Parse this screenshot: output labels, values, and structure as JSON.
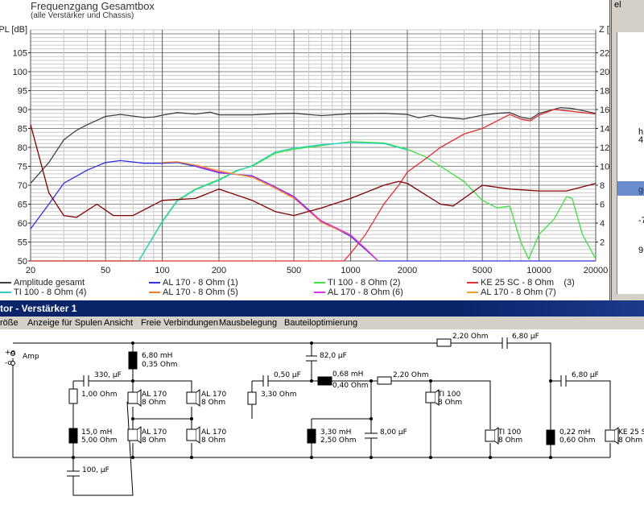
{
  "chart": {
    "title": "Frequenzgang Gesamtbox",
    "subtitle": "(alle Verstärker und Chassis)"
  },
  "chart_data": {
    "type": "line",
    "title": "Frequenzgang Gesamtbox",
    "subtitle": "(alle Verstärker und Chassis)",
    "xscale": "log",
    "xlim": [
      20,
      20000
    ],
    "xticks": [
      "20",
      "50",
      "100",
      "200",
      "500",
      "1000",
      "2000",
      "5000",
      "10000",
      "20000"
    ],
    "ylabel": "PL [dB]",
    "ylim": [
      50,
      110
    ],
    "yticks": [
      "50",
      "55",
      "60",
      "65",
      "70",
      "75",
      "80",
      "85",
      "90",
      "95",
      "100",
      "105"
    ],
    "y2label": "Z [Ohm]",
    "y2lim": [
      0,
      24
    ],
    "y2ticks": [
      "2",
      "4",
      "6",
      "8",
      "10",
      "12",
      "14",
      "16",
      "18",
      "20",
      "22"
    ],
    "grid": true,
    "legend": "bottom",
    "series": [
      {
        "name": "Amplitude gesamt",
        "color": "#404040",
        "axis": "left",
        "points": [
          [
            20,
            70.5
          ],
          [
            25,
            76
          ],
          [
            30,
            82
          ],
          [
            35,
            84.5
          ],
          [
            40,
            86
          ],
          [
            50,
            88.2
          ],
          [
            60,
            88.7
          ],
          [
            80,
            87.9
          ],
          [
            90,
            88
          ],
          [
            100,
            88.5
          ],
          [
            120,
            89.2
          ],
          [
            150,
            88.8
          ],
          [
            180,
            89.3
          ],
          [
            200,
            88.6
          ],
          [
            300,
            88.6
          ],
          [
            400,
            88.9
          ],
          [
            500,
            89
          ],
          [
            700,
            88.4
          ],
          [
            1000,
            88.9
          ],
          [
            1500,
            89
          ],
          [
            2000,
            88.7
          ],
          [
            2300,
            87.8
          ],
          [
            2700,
            88.5
          ],
          [
            3000,
            88
          ],
          [
            4000,
            87.5
          ],
          [
            5000,
            88.5
          ],
          [
            6000,
            89
          ],
          [
            7000,
            89.2
          ],
          [
            8000,
            88
          ],
          [
            9000,
            87.5
          ],
          [
            10000,
            89
          ],
          [
            13000,
            90.5
          ],
          [
            15000,
            90.3
          ],
          [
            20000,
            89
          ]
        ]
      },
      {
        "name": "AL 170 - 8 Ohm (1)",
        "color": "#3030e0",
        "axis": "left",
        "points": [
          [
            20,
            58.5
          ],
          [
            25,
            65
          ],
          [
            30,
            70.5
          ],
          [
            40,
            74
          ],
          [
            50,
            76
          ],
          [
            60,
            76.5
          ],
          [
            80,
            75.8
          ],
          [
            100,
            75.8
          ],
          [
            120,
            76
          ],
          [
            150,
            75
          ],
          [
            200,
            73.3
          ],
          [
            300,
            72.5
          ],
          [
            400,
            69.5
          ],
          [
            500,
            67
          ],
          [
            600,
            63.5
          ],
          [
            700,
            60.5
          ],
          [
            1000,
            56.5
          ],
          [
            1200,
            53
          ],
          [
            1400,
            50
          ],
          [
            20000,
            50
          ]
        ]
      },
      {
        "name": "TI 100 - 8 Ohm (2)",
        "color": "#40e040",
        "axis": "left",
        "points": [
          [
            20,
            50
          ],
          [
            75,
            50
          ],
          [
            100,
            60.5
          ],
          [
            120,
            66
          ],
          [
            150,
            69
          ],
          [
            200,
            71.5
          ],
          [
            250,
            74
          ],
          [
            300,
            75
          ],
          [
            400,
            78.5
          ],
          [
            500,
            79.5
          ],
          [
            700,
            80.5
          ],
          [
            1000,
            81.5
          ],
          [
            1500,
            81.2
          ],
          [
            2000,
            79.5
          ],
          [
            2500,
            77.5
          ],
          [
            3000,
            75
          ],
          [
            4000,
            71
          ],
          [
            5000,
            66
          ],
          [
            6000,
            64
          ],
          [
            7000,
            64.5
          ],
          [
            8000,
            55
          ],
          [
            8800,
            50.5
          ],
          [
            10000,
            57
          ],
          [
            12000,
            61
          ],
          [
            14000,
            67
          ],
          [
            15000,
            66.5
          ],
          [
            17000,
            57
          ],
          [
            20000,
            50.5
          ]
        ]
      },
      {
        "name": "KE 25 SC - 8 Ohm    (3)",
        "color": "#e03030",
        "axis": "left",
        "points": [
          [
            20,
            50
          ],
          [
            920,
            50
          ],
          [
            1000,
            52
          ],
          [
            1200,
            57
          ],
          [
            1500,
            65
          ],
          [
            1800,
            70
          ],
          [
            2000,
            73.5
          ],
          [
            2500,
            77
          ],
          [
            3000,
            80
          ],
          [
            4000,
            83.5
          ],
          [
            5000,
            85
          ],
          [
            6000,
            87
          ],
          [
            7000,
            88.7
          ],
          [
            8000,
            87.5
          ],
          [
            9000,
            87
          ],
          [
            10000,
            88.5
          ],
          [
            12000,
            90
          ],
          [
            15000,
            89.5
          ],
          [
            20000,
            88.8
          ]
        ]
      },
      {
        "name": "TI 100 - 8 Ohm (4)",
        "color": "#30d0c0",
        "axis": "left",
        "points": [
          [
            75,
            50
          ],
          [
            100,
            60.3
          ],
          [
            120,
            65.8
          ],
          [
            150,
            68.8
          ],
          [
            200,
            71.3
          ],
          [
            250,
            73.8
          ],
          [
            300,
            75.2
          ],
          [
            400,
            78.8
          ],
          [
            500,
            79.8
          ],
          [
            700,
            80.7
          ],
          [
            1000,
            81.3
          ],
          [
            1500,
            81
          ],
          [
            2000,
            79.3
          ]
        ]
      },
      {
        "name": "AL 170 - 8 Ohm (5)",
        "color": "#f08030",
        "axis": "left",
        "points": [
          [
            100,
            76
          ],
          [
            120,
            76.2
          ],
          [
            150,
            75.3
          ],
          [
            200,
            73.6
          ],
          [
            300,
            72.2
          ],
          [
            400,
            69.2
          ],
          [
            500,
            66.6
          ],
          [
            600,
            63.2
          ],
          [
            700,
            60.2
          ],
          [
            1000,
            56.8
          ],
          [
            1200,
            53.3
          ],
          [
            1400,
            50
          ]
        ]
      },
      {
        "name": "AL 170 - 8 Ohm (6)",
        "color": "#e030e0",
        "axis": "left",
        "points": [
          [
            150,
            75.2
          ],
          [
            200,
            73.5
          ],
          [
            300,
            72.3
          ],
          [
            400,
            69.4
          ],
          [
            500,
            66.8
          ],
          [
            600,
            63.3
          ],
          [
            700,
            60.6
          ],
          [
            1000,
            56.9
          ],
          [
            1200,
            53.2
          ],
          [
            1400,
            50
          ]
        ]
      },
      {
        "name": "AL 170 - 8 Ohm (7)",
        "color": "#f0a030",
        "axis": "left",
        "points": [
          [
            150,
            75.4
          ],
          [
            200,
            73.8
          ],
          [
            300,
            72.1
          ],
          [
            400,
            69.1
          ],
          [
            500,
            66.5
          ]
        ]
      },
      {
        "color": "#800000",
        "axis": "right",
        "points": [
          [
            20,
            14.4
          ],
          [
            25,
            7.2
          ],
          [
            30,
            4.8
          ],
          [
            35,
            4.6
          ],
          [
            45,
            6
          ],
          [
            55,
            4.8
          ],
          [
            70,
            4.8
          ],
          [
            100,
            6.4
          ],
          [
            150,
            6.6
          ],
          [
            200,
            7.6
          ],
          [
            300,
            6.4
          ],
          [
            400,
            5.2
          ],
          [
            500,
            4.8
          ],
          [
            700,
            5.6
          ],
          [
            1000,
            6.6
          ],
          [
            1500,
            8
          ],
          [
            1800,
            8.4
          ],
          [
            2000,
            8.2
          ],
          [
            3000,
            6
          ],
          [
            3500,
            5.8
          ],
          [
            5000,
            8
          ],
          [
            7000,
            7.6
          ],
          [
            10000,
            7.4
          ],
          [
            14000,
            7.4
          ],
          [
            20000,
            8.2
          ]
        ]
      }
    ]
  },
  "side_window": {
    "fragments": [
      "el",
      "h",
      "4.",
      "ge",
      "-7",
      "9"
    ]
  },
  "window": {
    "title": "tor - Verstärker 1"
  },
  "menu": [
    "röße",
    "Anzeige für Spulen",
    "Ansicht",
    "Freie Verbindungen",
    "Mausbelegung",
    "Bauteiloptimierung"
  ],
  "circuit": {
    "amp_plus": "+o",
    "amp_minus": "-o",
    "amp_label": "Amp",
    "components": {
      "l1": [
        "6,80 mH",
        "0,35 Ohm"
      ],
      "c1": "330, µF",
      "r1": "1,00 Ohm",
      "l2": [
        "15,0 mH",
        "5,00 Ohm"
      ],
      "c2": "100, µF",
      "spk1": [
        "AL 170",
        "8 Ohm"
      ],
      "spk2": [
        "AL 170",
        "8 Ohm"
      ],
      "spk3": [
        "AL 170",
        "8 Ohm"
      ],
      "spk4": [
        "AL 170",
        "8 Ohm"
      ],
      "c3": "82,0 µF",
      "c4": "0,50 µF",
      "r2": "3,30 Ohm",
      "l3": [
        "0,68 mH",
        "0,40 Ohm"
      ],
      "r3": "2,20 Ohm",
      "l4": [
        "3,30 mH",
        "2,50 Ohm"
      ],
      "c5": "8,00 µF",
      "spk5": [
        "TI 100",
        "8 Ohm"
      ],
      "spk6": [
        "TI 100",
        "8 Ohm"
      ],
      "r4": "2,20 Ohm",
      "c6": "6,80 µF",
      "c7": "6,80 µF",
      "l5": [
        "0,22 mH",
        "0,60 Ohm"
      ],
      "spk7": [
        "KE 25 S",
        "8 Ohm"
      ]
    }
  }
}
